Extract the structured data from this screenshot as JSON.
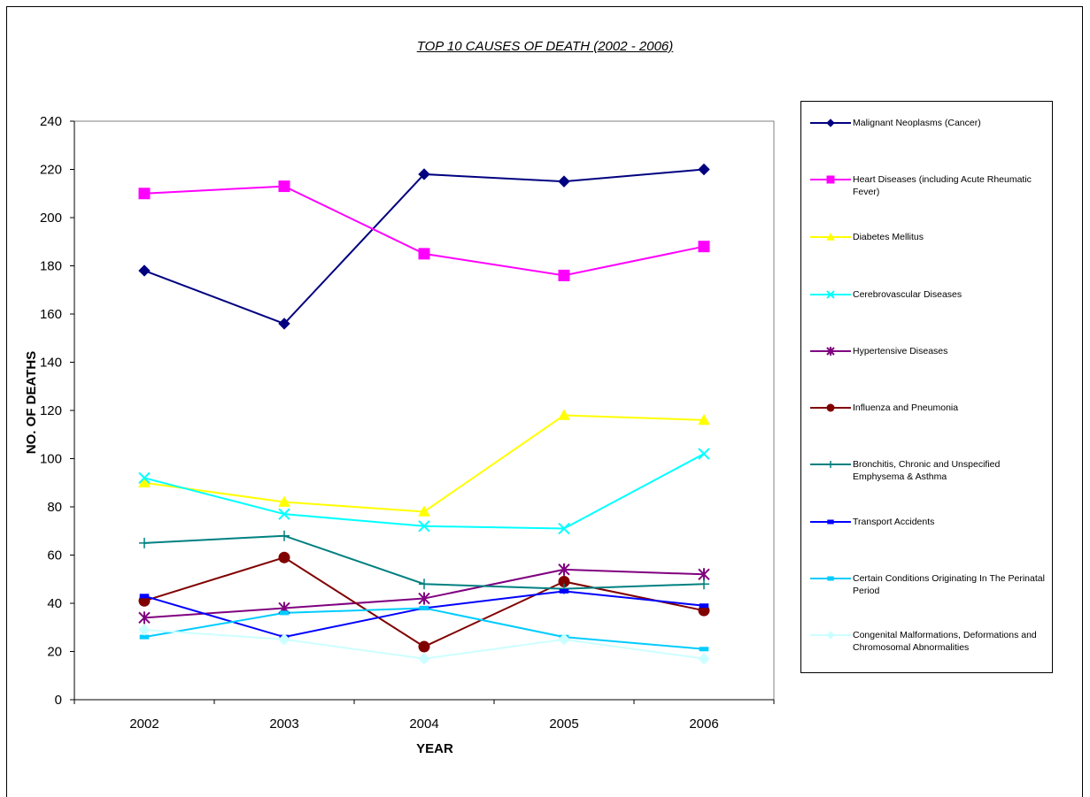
{
  "chart_data": {
    "type": "line",
    "title": "TOP 10 CAUSES OF DEATH (2002 - 2006)",
    "xlabel": "YEAR",
    "ylabel": "NO. OF DEATHS",
    "categories": [
      "2002",
      "2003",
      "2004",
      "2005",
      "2006"
    ],
    "ylim": [
      0,
      240
    ],
    "yticks": [
      "0",
      "20",
      "40",
      "60",
      "80",
      "100",
      "120",
      "140",
      "160",
      "180",
      "200",
      "220",
      "240"
    ],
    "grid": false,
    "legend_position": "right",
    "series": [
      {
        "name": "Malignant Neoplasms (Cancer)",
        "values": [
          178,
          156,
          218,
          215,
          220
        ],
        "color": "#000080",
        "marker": "diamond"
      },
      {
        "name": "Heart Diseases (including Acute Rheumatic Fever)",
        "values": [
          210,
          213,
          185,
          176,
          188
        ],
        "color": "#ff00ff",
        "marker": "square"
      },
      {
        "name": "Diabetes Mellitus",
        "values": [
          90,
          82,
          78,
          118,
          116
        ],
        "color": "#ffff00",
        "marker": "triangle"
      },
      {
        "name": "Cerebrovascular Diseases",
        "values": [
          92,
          77,
          72,
          71,
          102
        ],
        "color": "#00ffff",
        "marker": "x"
      },
      {
        "name": "Hypertensive Diseases",
        "values": [
          34,
          38,
          42,
          54,
          52
        ],
        "color": "#800080",
        "marker": "star"
      },
      {
        "name": "Influenza and Pneumonia",
        "values": [
          41,
          59,
          22,
          49,
          37
        ],
        "color": "#800000",
        "marker": "circle"
      },
      {
        "name": "Bronchitis, Chronic and Unspecified Emphysema & Asthma",
        "values": [
          65,
          68,
          48,
          46,
          48
        ],
        "color": "#008080",
        "marker": "plus"
      },
      {
        "name": "Transport Accidents",
        "values": [
          43,
          26,
          38,
          45,
          39
        ],
        "color": "#0000ff",
        "marker": "dash"
      },
      {
        "name": "Certain Conditions Originating In The Perinatal Period",
        "values": [
          26,
          36,
          38,
          26,
          21
        ],
        "color": "#00ccff",
        "marker": "dash"
      },
      {
        "name": "Congenital Malformations, Deformations and Chromosomal Abnormalities",
        "values": [
          29,
          25,
          17,
          25,
          17
        ],
        "color": "#ccffff",
        "marker": "diamond"
      }
    ]
  }
}
